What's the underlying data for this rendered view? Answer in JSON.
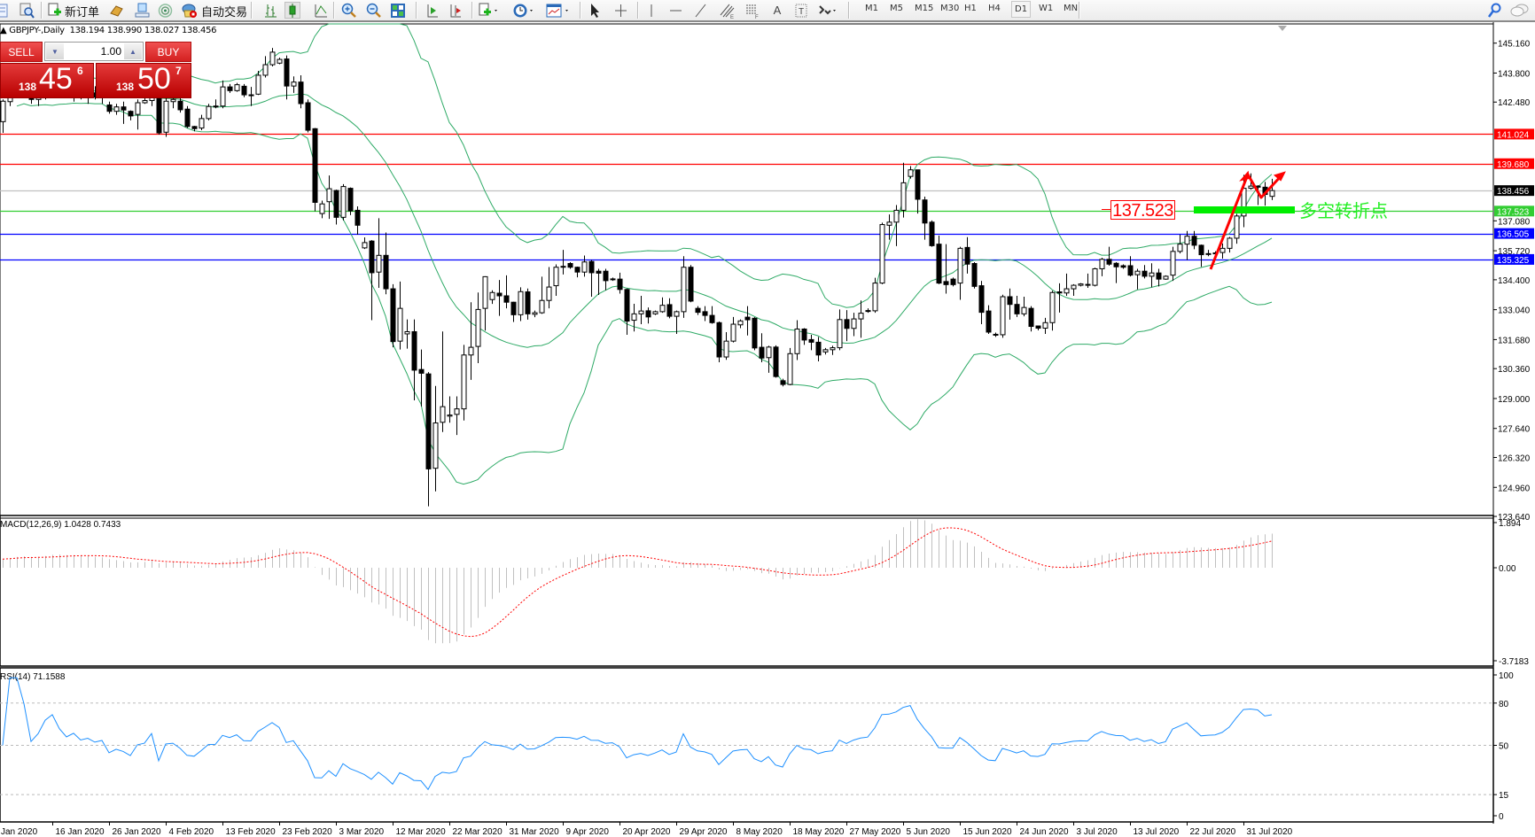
{
  "toolbar": {
    "new_order": "新订单",
    "autotrade": "自动交易",
    "timeframes": [
      "M1",
      "M5",
      "M15",
      "M30",
      "H1",
      "H4",
      "D1",
      "W1",
      "MN"
    ],
    "active_timeframe": "D1"
  },
  "chart": {
    "symbol_header": "GBPJPY-,Daily",
    "ohlc_header": "138.194 138.990 138.027 138.456"
  },
  "trade_panel": {
    "sell_label": "SELL",
    "buy_label": "BUY",
    "lots": "1.00",
    "sell_price": {
      "prefix": "138",
      "main": "45",
      "pip": "6"
    },
    "buy_price": {
      "prefix": "138",
      "main": "50",
      "pip": "7"
    },
    "color": "#d42020"
  },
  "price_axis": {
    "ticks": [
      "145.160",
      "143.800",
      "142.480",
      "137.080",
      "135.720",
      "134.400",
      "133.040",
      "131.680",
      "130.360",
      "129.000",
      "127.640",
      "126.320",
      "124.960",
      "123.640"
    ]
  },
  "levels": [
    {
      "price": "141.024",
      "color": "#ff0000",
      "label_color": "#ffffff"
    },
    {
      "price": "139.680",
      "color": "#ff0000",
      "label_color": "#ffffff"
    },
    {
      "price": "138.456",
      "color": "#c0c0c0",
      "label_bg": "#000000",
      "label_color": "#ffffff"
    },
    {
      "price": "137.523",
      "color": "#32cd32",
      "label_color": "#ffffff"
    },
    {
      "price": "136.505",
      "color": "#0000ff",
      "label_color": "#ffffff"
    },
    {
      "price": "135.325",
      "color": "#0000ff",
      "label_color": "#ffffff"
    }
  ],
  "annotation": {
    "price_label": "137.523",
    "text": "多空转折点",
    "text_color": "#22ee22",
    "arrow_color": "#ff0000"
  },
  "indicators": {
    "bollinger_color": "#2eaa66",
    "macd": {
      "label": "MACD(12,26,9) 1.0428 0.7433",
      "axis": [
        "1.894",
        "0.00",
        "-3.7183"
      ],
      "histogram_color": "#c0c0c0",
      "signal_color": "#ff0000"
    },
    "rsi": {
      "label": "RSI(14) 71.1588",
      "axis": [
        "100",
        "80",
        "50",
        "15",
        "0"
      ],
      "line_color": "#1e90ff"
    }
  },
  "dates": [
    "Jan 2020",
    "16 Jan 2020",
    "26 Jan 2020",
    "4 Feb 2020",
    "13 Feb 2020",
    "23 Feb 2020",
    "3 Mar 2020",
    "12 Mar 2020",
    "22 Mar 2020",
    "31 Mar 2020",
    "9 Apr 2020",
    "20 Apr 2020",
    "29 Apr 2020",
    "8 May 2020",
    "18 May 2020",
    "27 May 2020",
    "5 Jun 2020",
    "15 Jun 2020",
    "24 Jun 2020",
    "3 Jul 2020",
    "13 Jul 2020",
    "22 Jul 2020",
    "31 Jul 2020"
  ],
  "chart_data": {
    "type": "candlestick",
    "symbol": "GBPJPY-",
    "timeframe": "Daily",
    "ylim": [
      123.64,
      145.16
    ],
    "ohlc": [
      [
        141.59,
        142.6,
        141.08,
        142.52
      ],
      [
        142.5,
        143.2,
        142.3,
        143.0
      ],
      [
        143.0,
        143.6,
        142.7,
        143.3
      ],
      [
        143.3,
        143.8,
        142.9,
        143.1
      ],
      [
        143.1,
        143.4,
        142.4,
        142.6
      ],
      [
        142.6,
        143.0,
        142.3,
        142.8
      ],
      [
        142.8,
        143.5,
        142.6,
        143.3
      ],
      [
        143.3,
        143.9,
        143.0,
        143.6
      ],
      [
        143.6,
        144.0,
        143.1,
        143.2
      ],
      [
        143.2,
        143.5,
        142.7,
        142.9
      ],
      [
        142.9,
        143.3,
        142.5,
        143.1
      ],
      [
        143.1,
        143.4,
        142.6,
        142.8
      ],
      [
        142.8,
        143.1,
        142.4,
        142.9
      ],
      [
        142.9,
        143.2,
        142.6,
        142.7
      ],
      [
        142.7,
        143.0,
        142.4,
        142.8
      ],
      [
        142.35,
        142.5,
        141.95,
        142.06
      ],
      [
        142.06,
        142.4,
        141.9,
        142.26
      ],
      [
        142.26,
        142.5,
        141.49,
        142.12
      ],
      [
        142.06,
        142.1,
        141.65,
        141.85
      ],
      [
        141.92,
        142.6,
        141.23,
        142.45
      ],
      [
        142.45,
        142.7,
        142.4,
        142.55
      ],
      [
        142.55,
        143.4,
        142.3,
        143.2
      ],
      [
        143.0,
        143.3,
        141.0,
        141.08
      ],
      [
        141.11,
        142.9,
        140.9,
        142.52
      ],
      [
        142.5,
        142.9,
        142.2,
        142.6
      ],
      [
        142.52,
        142.8,
        142.0,
        142.13
      ],
      [
        142.16,
        142.3,
        141.3,
        141.37
      ],
      [
        141.37,
        141.4,
        141.15,
        141.27
      ],
      [
        141.3,
        141.9,
        141.2,
        141.73
      ],
      [
        141.73,
        142.4,
        141.65,
        142.28
      ],
      [
        142.28,
        142.6,
        142.2,
        142.3
      ],
      [
        142.3,
        143.46,
        142.2,
        143.17
      ],
      [
        143.17,
        143.3,
        142.9,
        143.0
      ],
      [
        143.0,
        143.35,
        142.95,
        143.27
      ],
      [
        143.2,
        143.3,
        142.7,
        142.81
      ],
      [
        142.81,
        143.17,
        142.3,
        142.8
      ],
      [
        142.84,
        143.9,
        142.8,
        143.7
      ],
      [
        143.7,
        144.57,
        143.6,
        144.18
      ],
      [
        144.18,
        144.94,
        144.1,
        144.75
      ],
      [
        144.25,
        144.5,
        144.2,
        144.42
      ],
      [
        144.44,
        144.6,
        142.6,
        143.21
      ],
      [
        143.21,
        143.65,
        142.9,
        143.39
      ],
      [
        143.39,
        143.7,
        142.2,
        142.41
      ],
      [
        142.45,
        142.6,
        141.1,
        141.2
      ],
      [
        141.27,
        141.3,
        137.51,
        137.92
      ],
      [
        137.41,
        138.0,
        137.2,
        137.85
      ],
      [
        137.95,
        139.14,
        137.17,
        138.54
      ],
      [
        138.46,
        138.5,
        136.91,
        137.24
      ],
      [
        137.24,
        138.75,
        137.1,
        138.64
      ],
      [
        138.56,
        138.6,
        137.34,
        137.53
      ],
      [
        137.56,
        137.74,
        136.45,
        136.88
      ],
      [
        135.85,
        136.33,
        135.8,
        136.09
      ],
      [
        136.16,
        136.2,
        132.56,
        134.72
      ],
      [
        134.75,
        137.2,
        134.03,
        135.51
      ],
      [
        135.51,
        136.55,
        133.74,
        133.99
      ],
      [
        133.99,
        134.2,
        131.33,
        131.59
      ],
      [
        131.61,
        134.32,
        131.23,
        133.1
      ],
      [
        131.94,
        132.6,
        131.27,
        132.04
      ],
      [
        132.04,
        132.6,
        128.92,
        130.29
      ],
      [
        130.32,
        131.23,
        128.64,
        130.15
      ],
      [
        130.12,
        130.2,
        124.1,
        125.8
      ],
      [
        125.83,
        129.57,
        124.78,
        127.89
      ],
      [
        127.92,
        132.05,
        127.48,
        128.63
      ],
      [
        128.2,
        129.1,
        127.9,
        128.25
      ],
      [
        128.28,
        129.1,
        127.34,
        128.53
      ],
      [
        128.53,
        131.44,
        128.0,
        130.98
      ],
      [
        130.98,
        133.38,
        129.85,
        131.33
      ],
      [
        131.37,
        133.82,
        130.61,
        133.05
      ],
      [
        133.1,
        134.56,
        132.09,
        134.54
      ],
      [
        133.5,
        133.92,
        133.3,
        133.82
      ],
      [
        133.79,
        134.39,
        132.76,
        133.67
      ],
      [
        133.67,
        134.6,
        133.1,
        133.38
      ],
      [
        133.38,
        133.4,
        132.48,
        132.81
      ],
      [
        132.81,
        134.06,
        132.52,
        133.86
      ],
      [
        133.85,
        134.0,
        132.59,
        132.85
      ],
      [
        132.83,
        133.0,
        132.7,
        132.9
      ],
      [
        132.9,
        134.54,
        132.85,
        133.46
      ],
      [
        133.46,
        134.98,
        133.1,
        134.07
      ],
      [
        134.13,
        135.1,
        133.67,
        134.97
      ],
      [
        134.97,
        135.76,
        134.64,
        135.01
      ],
      [
        135.14,
        135.2,
        134.9,
        134.97
      ],
      [
        134.97,
        135.0,
        134.51,
        134.75
      ],
      [
        134.75,
        135.5,
        134.54,
        135.21
      ],
      [
        135.23,
        135.3,
        133.63,
        134.72
      ],
      [
        134.79,
        134.9,
        133.71,
        134.7
      ],
      [
        134.79,
        134.9,
        133.92,
        134.36
      ],
      [
        134.44,
        134.5,
        134.35,
        134.42
      ],
      [
        134.43,
        134.72,
        133.77,
        133.96
      ],
      [
        133.96,
        134.0,
        131.9,
        132.52
      ],
      [
        132.56,
        133.31,
        132.05,
        132.85
      ],
      [
        132.85,
        133.67,
        132.38,
        132.98
      ],
      [
        132.99,
        133.14,
        132.41,
        132.71
      ],
      [
        132.85,
        133.0,
        132.8,
        132.95
      ],
      [
        132.95,
        133.6,
        132.9,
        133.24
      ],
      [
        133.27,
        133.56,
        132.65,
        132.74
      ],
      [
        132.74,
        133.0,
        131.94,
        132.95
      ],
      [
        132.95,
        135.47,
        132.67,
        134.97
      ],
      [
        134.97,
        135.07,
        133.38,
        133.43
      ],
      [
        133.1,
        133.2,
        132.8,
        132.92
      ],
      [
        132.95,
        133.2,
        132.52,
        132.78
      ],
      [
        132.78,
        133.2,
        132.4,
        132.45
      ],
      [
        132.45,
        132.5,
        130.65,
        130.89
      ],
      [
        130.89,
        132.02,
        130.76,
        131.61
      ],
      [
        131.61,
        132.71,
        131.55,
        132.38
      ],
      [
        132.35,
        132.6,
        132.2,
        132.53
      ],
      [
        132.7,
        133.2,
        131.87,
        132.58
      ],
      [
        132.65,
        132.7,
        131.2,
        131.3
      ],
      [
        131.33,
        131.97,
        130.65,
        130.84
      ],
      [
        130.86,
        131.4,
        130.17,
        131.34
      ],
      [
        131.34,
        131.42,
        129.95,
        130.0
      ],
      [
        129.81,
        129.9,
        129.55,
        129.64
      ],
      [
        129.64,
        131.3,
        129.6,
        131.04
      ],
      [
        131.04,
        132.56,
        130.75,
        132.16
      ],
      [
        132.16,
        132.2,
        131.44,
        131.66
      ],
      [
        131.68,
        131.9,
        131.2,
        131.56
      ],
      [
        131.56,
        131.8,
        130.69,
        130.98
      ],
      [
        131.12,
        131.3,
        131.0,
        131.22
      ],
      [
        131.22,
        131.4,
        130.98,
        131.31
      ],
      [
        131.31,
        133.05,
        131.2,
        132.59
      ],
      [
        132.59,
        133.02,
        131.61,
        132.19
      ],
      [
        132.19,
        132.9,
        131.84,
        132.62
      ],
      [
        132.62,
        133.46,
        131.76,
        132.88
      ],
      [
        132.99,
        133.1,
        132.9,
        133.0
      ],
      [
        132.99,
        134.49,
        132.9,
        134.25
      ],
      [
        134.25,
        137.0,
        134.2,
        136.91
      ],
      [
        136.88,
        137.37,
        136.22,
        137.02
      ],
      [
        137.02,
        137.8,
        135.93,
        137.56
      ],
      [
        137.56,
        139.72,
        137.23,
        138.81
      ],
      [
        139.1,
        139.57,
        139.0,
        139.4
      ],
      [
        139.4,
        139.4,
        137.41,
        138.06
      ],
      [
        138.03,
        138.18,
        136.22,
        136.98
      ],
      [
        137.02,
        137.1,
        135.9,
        135.95
      ],
      [
        136.02,
        136.41,
        134.2,
        134.25
      ],
      [
        134.32,
        136.02,
        133.77,
        134.18
      ],
      [
        134.43,
        134.5,
        134.1,
        134.18
      ],
      [
        134.25,
        135.9,
        133.49,
        135.83
      ],
      [
        135.87,
        136.34,
        134.68,
        135.11
      ],
      [
        135.14,
        135.2,
        134.0,
        134.1
      ],
      [
        134.13,
        134.35,
        132.38,
        132.92
      ],
      [
        132.98,
        133.24,
        131.94,
        132.02
      ],
      [
        131.92,
        132.0,
        131.8,
        131.9
      ],
      [
        131.9,
        133.72,
        131.76,
        133.63
      ],
      [
        133.63,
        134.0,
        132.59,
        133.28
      ],
      [
        133.28,
        133.67,
        132.71,
        132.85
      ],
      [
        132.85,
        133.63,
        132.74,
        133.14
      ],
      [
        133.1,
        133.2,
        132.05,
        132.28
      ],
      [
        132.3,
        132.3,
        132.1,
        132.2
      ],
      [
        132.2,
        132.67,
        131.94,
        132.45
      ],
      [
        132.45,
        133.9,
        132.09,
        133.82
      ],
      [
        133.85,
        134.24,
        132.91,
        133.8
      ],
      [
        133.8,
        134.68,
        133.67,
        133.99
      ],
      [
        133.99,
        134.2,
        133.67,
        134.15
      ],
      [
        134.15,
        134.25,
        134.1,
        134.21
      ],
      [
        134.18,
        134.68,
        134.03,
        134.19
      ],
      [
        134.15,
        134.95,
        134.1,
        134.9
      ],
      [
        134.9,
        135.4,
        134.56,
        135.33
      ],
      [
        135.33,
        135.9,
        135.04,
        135.11
      ],
      [
        135.15,
        135.2,
        134.25,
        134.99
      ],
      [
        135.04,
        135.1,
        134.9,
        134.97
      ],
      [
        135.04,
        135.47,
        134.55,
        134.61
      ],
      [
        134.63,
        134.9,
        133.96,
        134.79
      ],
      [
        134.79,
        135.07,
        134.46,
        134.56
      ],
      [
        134.56,
        135.15,
        134.06,
        134.71
      ],
      [
        134.71,
        134.9,
        134.1,
        134.43
      ],
      [
        134.43,
        134.6,
        134.4,
        134.56
      ],
      [
        134.61,
        135.9,
        134.35,
        135.69
      ],
      [
        135.69,
        136.45,
        135.6,
        136.02
      ],
      [
        136.02,
        136.62,
        135.3,
        136.38
      ],
      [
        136.38,
        136.62,
        135.79,
        135.97
      ],
      [
        135.97,
        136.0,
        134.99,
        135.54
      ],
      [
        135.58,
        135.76,
        135.47,
        135.59
      ],
      [
        135.61,
        135.7,
        135.5,
        135.62
      ],
      [
        135.64,
        136.05,
        135.36,
        135.83
      ],
      [
        135.83,
        136.35,
        135.64,
        136.29
      ],
      [
        136.29,
        137.4,
        136.04,
        137.3
      ],
      [
        137.3,
        139.17,
        136.79,
        138.56
      ],
      [
        138.56,
        139.24,
        138.5,
        138.66
      ],
      [
        138.66,
        138.7,
        137.8,
        138.61
      ],
      [
        138.61,
        138.85,
        137.77,
        138.28
      ],
      [
        138.194,
        138.99,
        138.027,
        138.456
      ]
    ]
  }
}
